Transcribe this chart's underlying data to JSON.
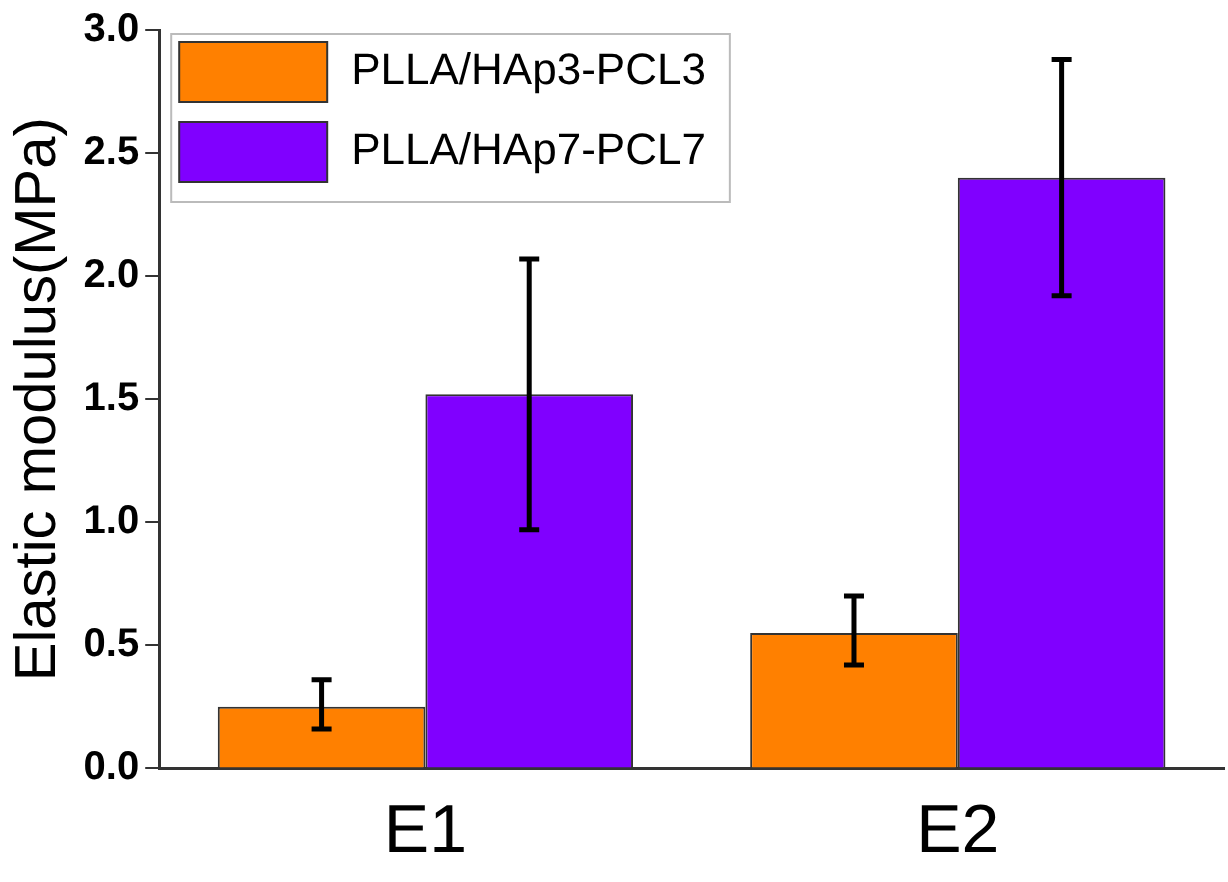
{
  "chart_data": {
    "type": "bar",
    "ylabel": "Elastic modulus(MPa)",
    "categories": [
      "E1",
      "E2"
    ],
    "series": [
      {
        "name": "PLLA/HAp3-PCL3",
        "color": "#ff8000",
        "values": [
          0.25,
          0.55
        ],
        "errors": [
          [
            0.16,
            0.36
          ],
          [
            0.42,
            0.7
          ]
        ]
      },
      {
        "name": "PLLA/HAp7-PCL7",
        "color": "#8000ff",
        "values": [
          1.52,
          2.4
        ],
        "errors": [
          [
            0.97,
            2.07
          ],
          [
            1.92,
            2.88
          ]
        ]
      }
    ],
    "ylim": [
      0,
      3.0
    ],
    "yticks": [
      {
        "value": 0,
        "label": "0.0"
      },
      0.5,
      {
        "value": 1,
        "label": "1.0"
      },
      1.5,
      {
        "value": 2,
        "label": "2.0"
      },
      2.5,
      {
        "value": 3,
        "label": "3.0"
      }
    ],
    "grid": false,
    "legend": "top left"
  }
}
